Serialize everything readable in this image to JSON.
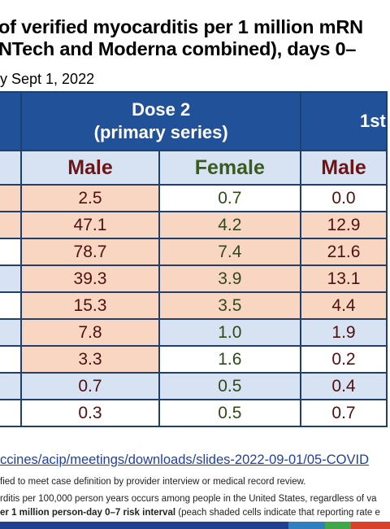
{
  "title": {
    "line1": "of verified myocarditis per 1 million mRN",
    "line2": "NTech and Moderna combined), days 0–"
  },
  "subtitle": "y Sept 1, 2022",
  "table": {
    "group_headers": {
      "dose2": "Dose 2",
      "dose2_sub": "(primary series)",
      "booster": "1st"
    },
    "sub_headers": {
      "male": "Male",
      "female": "Female",
      "male2": "Male"
    },
    "rows": [
      {
        "left": "peach",
        "dose2_male": "2.5",
        "dose2_female": "0.7",
        "booster_male": "0.0",
        "dm_shade": "peach",
        "df_shade": "white",
        "bm_shade": "white"
      },
      {
        "left": "peach",
        "dose2_male": "47.1",
        "dose2_female": "4.2",
        "booster_male": "12.9",
        "dm_shade": "peach",
        "df_shade": "peach",
        "bm_shade": "peach"
      },
      {
        "left": "white",
        "dose2_male": "78.7",
        "dose2_female": "7.4",
        "booster_male": "21.6",
        "dm_shade": "peach",
        "df_shade": "peach",
        "bm_shade": "peach"
      },
      {
        "left": "blue",
        "dose2_male": "39.3",
        "dose2_female": "3.9",
        "booster_male": "13.1",
        "dm_shade": "peach",
        "df_shade": "peach",
        "bm_shade": "peach"
      },
      {
        "left": "white",
        "dose2_male": "15.3",
        "dose2_female": "3.5",
        "booster_male": "4.4",
        "dm_shade": "peach",
        "df_shade": "peach",
        "bm_shade": "peach"
      },
      {
        "left": "blue",
        "dose2_male": "7.8",
        "dose2_female": "1.0",
        "booster_male": "1.9",
        "dm_shade": "peach",
        "df_shade": "blue",
        "bm_shade": "blue"
      },
      {
        "left": "white",
        "dose2_male": "3.3",
        "dose2_female": "1.6",
        "booster_male": "0.2",
        "dm_shade": "peach",
        "df_shade": "white",
        "bm_shade": "white"
      },
      {
        "left": "blue",
        "dose2_male": "0.7",
        "dose2_female": "0.5",
        "booster_male": "0.4",
        "dm_shade": "blue",
        "df_shade": "blue",
        "bm_shade": "blue"
      },
      {
        "left": "white",
        "dose2_male": "0.3",
        "dose2_female": "0.5",
        "booster_male": "0.7",
        "dm_shade": "white",
        "df_shade": "white",
        "bm_shade": "white"
      }
    ]
  },
  "source_url": "ccines/acip/meetings/downloads/slides-2022-09-01/05-COVID",
  "footnotes": {
    "fn1": "fied to meet case definition by provider interview or medical record review.",
    "fn2": "rditis per 100,000 person years occurs among people in the United States, regardless of va",
    "fn3_bold": "er 1 million person-day 0–7 risk interval",
    "fn3_rest": " (peach shaded cells indicate that reporting rate e"
  },
  "colors": {
    "header_blue": "#215199",
    "light_blue": "#d7e2f2",
    "peach": "#f9d6c1",
    "bar_segments": [
      "#1f3f8f",
      "#2e7fbf",
      "#3fa64a",
      "#d9412b",
      "#1f3f8f"
    ]
  }
}
